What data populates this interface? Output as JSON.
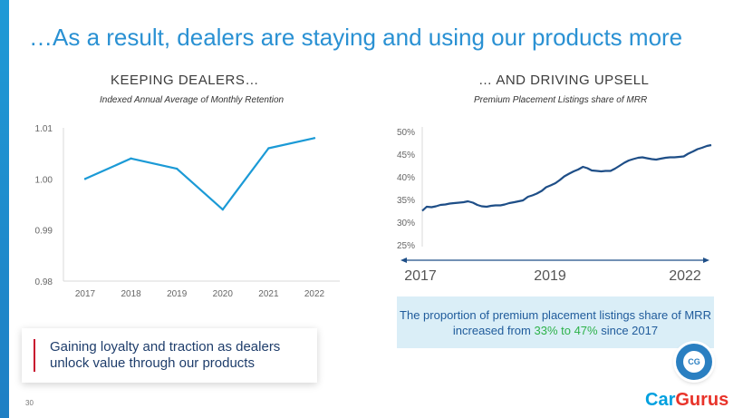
{
  "page_title": "…As a result, dealers are staying and using our products more",
  "left_section": {
    "heading": "KEEPING DEALERS…",
    "subtitle": "Indexed Annual Average of Monthly Retention"
  },
  "right_section": {
    "heading": "… AND DRIVING UPSELL",
    "subtitle": "Premium Placement Listings share of MRR"
  },
  "chart_data": [
    {
      "type": "line",
      "title": "Indexed Annual Average of Monthly Retention",
      "x": [
        "2017",
        "2018",
        "2019",
        "2020",
        "2021",
        "2022"
      ],
      "values": [
        1.0,
        1.004,
        1.002,
        0.994,
        1.006,
        1.008
      ],
      "yticks": [
        "1.01",
        "1.00",
        "0.99",
        "0.98"
      ],
      "ylim": [
        0.98,
        1.01
      ],
      "color": "#1b9ad6"
    },
    {
      "type": "line",
      "title": "Premium Placement Listings share of MRR",
      "x": [
        2017.0,
        2017.08,
        2017.17,
        2017.25,
        2017.33,
        2017.42,
        2017.5,
        2017.58,
        2017.67,
        2017.75,
        2017.83,
        2017.92,
        2018.0,
        2018.08,
        2018.17,
        2018.25,
        2018.33,
        2018.42,
        2018.5,
        2018.58,
        2018.67,
        2018.75,
        2018.83,
        2018.92,
        2019.0,
        2019.08,
        2019.17,
        2019.25,
        2019.33,
        2019.42,
        2019.5,
        2019.58,
        2019.67,
        2019.75,
        2019.83,
        2019.92,
        2020.0,
        2020.08,
        2020.17,
        2020.25,
        2020.33,
        2020.42,
        2020.5,
        2020.58,
        2020.67,
        2020.75,
        2020.83,
        2020.92,
        2021.0,
        2021.08,
        2021.17,
        2021.25,
        2021.33,
        2021.42,
        2021.5,
        2021.58,
        2021.67,
        2021.75,
        2021.83,
        2021.92,
        2022.0,
        2022.08,
        2022.17,
        2022.25
      ],
      "values": [
        32.5,
        33.4,
        33.3,
        33.5,
        33.8,
        33.9,
        34.1,
        34.2,
        34.3,
        34.4,
        34.6,
        34.3,
        33.8,
        33.5,
        33.4,
        33.6,
        33.7,
        33.7,
        33.9,
        34.2,
        34.4,
        34.6,
        34.8,
        35.6,
        35.9,
        36.3,
        36.9,
        37.7,
        38.1,
        38.6,
        39.3,
        40.1,
        40.7,
        41.2,
        41.6,
        42.2,
        41.9,
        41.4,
        41.3,
        41.2,
        41.3,
        41.3,
        41.8,
        42.4,
        43.1,
        43.6,
        43.9,
        44.2,
        44.3,
        44.1,
        43.9,
        43.8,
        44.0,
        44.2,
        44.3,
        44.3,
        44.4,
        44.5,
        45.1,
        45.6,
        46.1,
        46.4,
        46.8,
        47.0
      ],
      "yticks": [
        "50%",
        "45%",
        "40%",
        "35%",
        "30%",
        "25%"
      ],
      "ylim": [
        25,
        50
      ],
      "x_labels": [
        "2017",
        "2019",
        "2022"
      ],
      "color": "#1e4e87"
    }
  ],
  "callout": {
    "text_before": "The proportion of premium placement listings share of MRR increased from ",
    "highlight": "33% to 47%",
    "text_after": " since 2017"
  },
  "insight": {
    "line1": "Gaining loyalty and traction as dealers",
    "line2": "unlock value through our products"
  },
  "page_number": "30",
  "logo": {
    "part1": "Car",
    "part2": "Gurus"
  },
  "badge_text": "CG"
}
